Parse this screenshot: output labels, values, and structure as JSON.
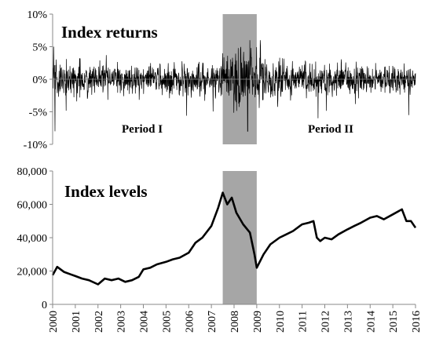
{
  "chart_data": [
    {
      "type": "line",
      "title": "Index returns",
      "ylim": [
        -0.1,
        0.1
      ],
      "yticks": [
        -0.1,
        -0.05,
        0,
        0.05,
        0.1
      ],
      "ytick_labels": [
        "-10%",
        "-5%",
        "0%",
        "5%",
        "10%"
      ],
      "xlim": [
        2000,
        2016
      ],
      "shaded_range": [
        2007.5,
        2009.0
      ],
      "shade_color": "#a6a6a6",
      "line_color": "#000000",
      "annotations": [
        "Period I",
        "Period II"
      ],
      "series": [
        {
          "volatility_profile": {
            "x": [
              2000,
              2001,
              2002,
              2003,
              2004,
              2005,
              2006,
              2007,
              2007.5,
              2008,
              2008.5,
              2009,
              2010,
              2011,
              2012,
              2013,
              2014,
              2015,
              2016
            ],
            "daily_abs_return_scale": [
              0.016,
              0.014,
              0.012,
              0.01,
              0.011,
              0.011,
              0.012,
              0.014,
              0.018,
              0.022,
              0.028,
              0.02,
              0.016,
              0.015,
              0.014,
              0.012,
              0.011,
              0.011,
              0.01
            ]
          },
          "extreme_returns": [
            {
              "x": 2000.05,
              "y": 0.05
            },
            {
              "x": 2000.1,
              "y": -0.08
            },
            {
              "x": 2008.7,
              "y": 0.06
            },
            {
              "x": 2008.6,
              "y": -0.08
            },
            {
              "x": 2009.15,
              "y": 0.06
            },
            {
              "x": 2011.7,
              "y": -0.06
            },
            {
              "x": 2015.7,
              "y": -0.055
            }
          ]
        }
      ]
    },
    {
      "type": "line",
      "title": "Index levels",
      "ylim": [
        0,
        80000
      ],
      "yticks": [
        0,
        20000,
        40000,
        60000,
        80000
      ],
      "ytick_labels": [
        "0",
        "20,000",
        "40,000",
        "60,000",
        "80,000"
      ],
      "xlim": [
        2000,
        2016
      ],
      "x_tick_labels": [
        "2000",
        "2001",
        "2002",
        "2003",
        "2004",
        "2005",
        "2006",
        "2007",
        "2008",
        "2009",
        "2010",
        "2011",
        "2012",
        "2013",
        "2014",
        "2015",
        "2016"
      ],
      "shaded_range": [
        2007.5,
        2009.0
      ],
      "shade_color": "#a6a6a6",
      "line_color": "#000000",
      "series": [
        {
          "x": [
            2000,
            2000.2,
            2000.5,
            2000.8,
            2001,
            2001.3,
            2001.6,
            2002,
            2002.3,
            2002.6,
            2002.9,
            2003.2,
            2003.5,
            2003.8,
            2004,
            2004.3,
            2004.6,
            2005,
            2005.3,
            2005.6,
            2006,
            2006.3,
            2006.6,
            2007,
            2007.3,
            2007.5,
            2007.7,
            2007.9,
            2008.1,
            2008.4,
            2008.7,
            2008.9,
            2009.0,
            2009.3,
            2009.6,
            2010,
            2010.3,
            2010.6,
            2011,
            2011.3,
            2011.5,
            2011.65,
            2011.8,
            2012,
            2012.3,
            2012.6,
            2013,
            2013.3,
            2013.6,
            2014,
            2014.3,
            2014.6,
            2015,
            2015.4,
            2015.6,
            2015.8,
            2016
          ],
          "y": [
            17500,
            22500,
            19500,
            18000,
            17000,
            15500,
            14500,
            12000,
            15500,
            14500,
            15500,
            13500,
            14500,
            16500,
            21000,
            22000,
            24000,
            25500,
            27000,
            28000,
            31000,
            37000,
            40000,
            47000,
            58000,
            67000,
            60000,
            64000,
            55000,
            48000,
            43000,
            30000,
            22000,
            30000,
            36000,
            40000,
            42000,
            44000,
            48000,
            49000,
            50000,
            40000,
            38000,
            40000,
            39000,
            42000,
            45000,
            47000,
            49000,
            52000,
            53000,
            51000,
            54000,
            57000,
            50000,
            50000,
            46000
          ]
        }
      ]
    }
  ]
}
